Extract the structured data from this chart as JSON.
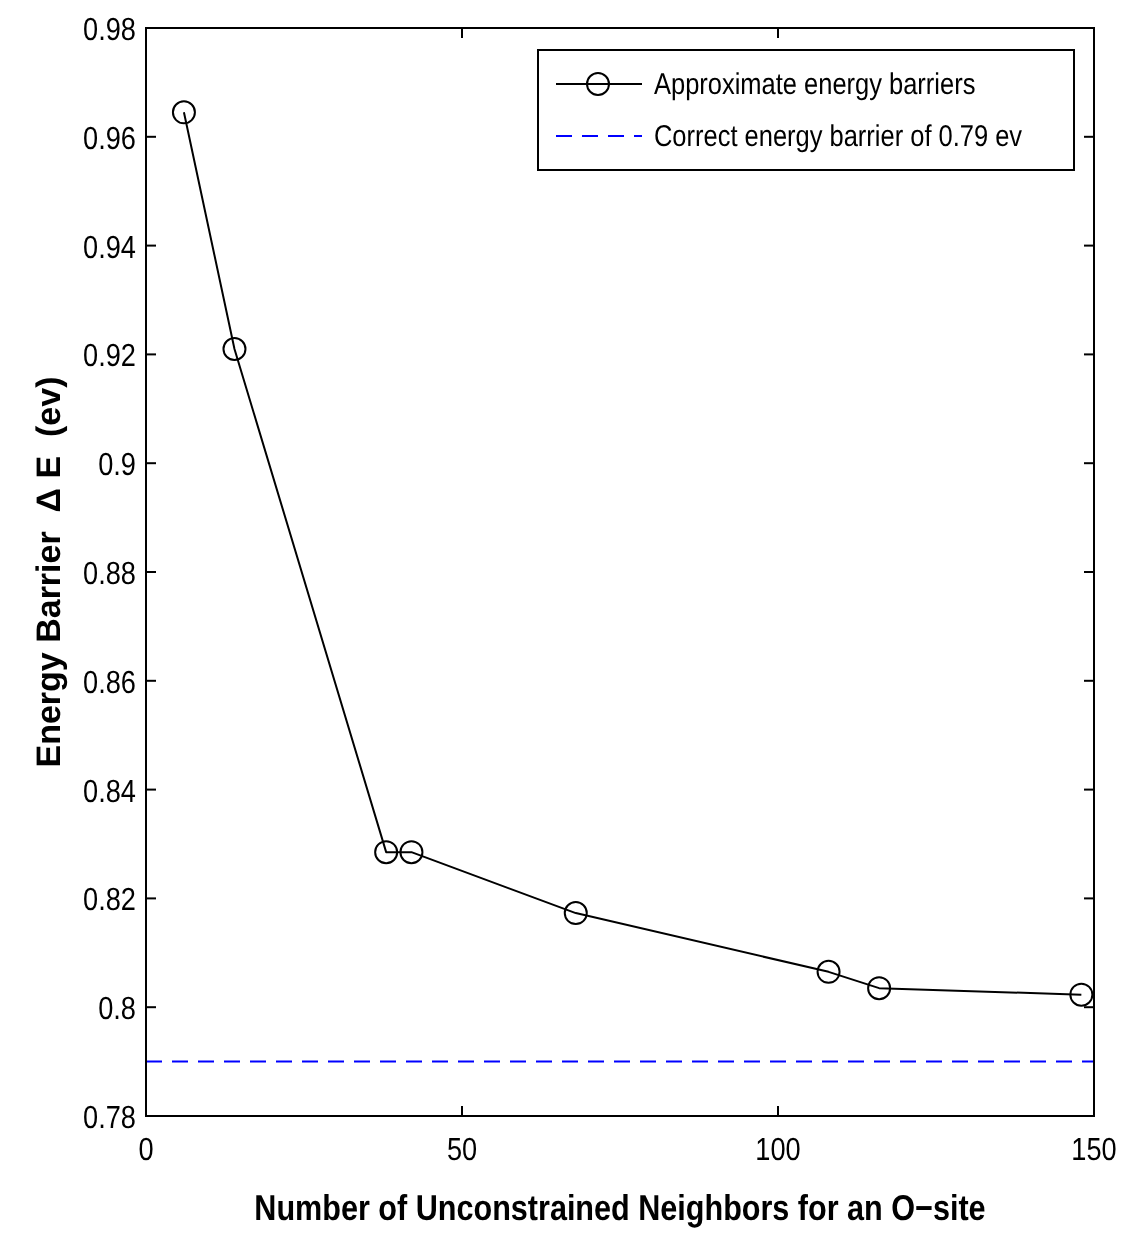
{
  "chart_data": {
    "type": "line",
    "xlabel": "Number of Unconstrained Neighbors for an O−site",
    "ylabel": "Energy Barrier  Δ E  (ev)",
    "x": [
      6,
      14,
      38,
      42,
      68,
      108,
      116,
      148
    ],
    "series": [
      {
        "name": "Approximate energy barriers",
        "color": "#000000",
        "values": [
          0.9645,
          0.921,
          0.8285,
          0.8285,
          0.8173,
          0.8065,
          0.8035,
          0.8023
        ]
      }
    ],
    "ref_lines": [
      {
        "axis": "y",
        "value": 0.79,
        "label": "Correct energy barrier of 0.79 ev",
        "color": "#0000ff",
        "line_style": "dashed"
      }
    ],
    "xlim": [
      0,
      150
    ],
    "ylim": [
      0.78,
      0.98
    ],
    "xticks": [
      0,
      50,
      100,
      150
    ],
    "yticks": [
      0.78,
      0.8,
      0.82,
      0.84,
      0.86,
      0.88,
      0.9,
      0.92,
      0.94,
      0.96,
      0.98
    ],
    "marker": "circle",
    "line_style": "solid",
    "grid": false,
    "legend": "top right"
  }
}
